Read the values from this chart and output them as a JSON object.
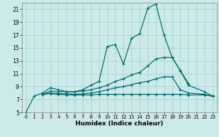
{
  "xlabel": "Humidex (Indice chaleur)",
  "bg_color": "#cceaea",
  "grid_color": "#aad0d0",
  "line_color": "#006b6b",
  "xlim": [
    -0.5,
    23.5
  ],
  "ylim": [
    5,
    22
  ],
  "yticks": [
    5,
    7,
    9,
    11,
    13,
    15,
    17,
    19,
    21
  ],
  "xticks": [
    0,
    1,
    2,
    3,
    4,
    5,
    6,
    7,
    8,
    9,
    10,
    11,
    12,
    13,
    14,
    15,
    16,
    17,
    18,
    19,
    20,
    21,
    22,
    23
  ],
  "lines": [
    {
      "x": [
        0,
        1,
        2,
        3,
        4,
        5,
        6,
        7,
        8,
        9,
        10,
        11,
        12,
        13,
        14,
        15,
        16,
        17,
        18,
        19,
        20
      ],
      "y": [
        5.0,
        7.5,
        8.0,
        8.8,
        8.5,
        8.2,
        8.2,
        8.5,
        9.2,
        9.8,
        15.2,
        15.5,
        12.5,
        16.5,
        17.2,
        21.2,
        21.8,
        17.0,
        13.5,
        11.5,
        9.5
      ]
    },
    {
      "x": [
        2,
        3,
        4,
        5,
        6,
        7,
        8,
        9,
        10,
        11,
        12,
        13,
        14,
        15,
        16,
        17,
        18,
        19,
        20,
        22,
        23
      ],
      "y": [
        7.8,
        8.3,
        8.2,
        8.2,
        8.2,
        8.3,
        8.5,
        8.8,
        9.2,
        9.8,
        10.2,
        10.8,
        11.2,
        12.2,
        13.3,
        13.5,
        13.5,
        11.5,
        9.2,
        8.2,
        7.5
      ]
    },
    {
      "x": [
        2,
        3,
        4,
        5,
        6,
        7,
        8,
        9,
        10,
        11,
        12,
        13,
        14,
        15,
        16,
        17,
        18,
        19,
        20,
        22,
        23
      ],
      "y": [
        7.8,
        8.0,
        7.9,
        7.9,
        7.8,
        7.9,
        8.0,
        8.2,
        8.5,
        8.8,
        9.0,
        9.3,
        9.6,
        9.8,
        10.2,
        10.5,
        10.5,
        8.5,
        8.0,
        7.8,
        7.5
      ]
    },
    {
      "x": [
        2,
        3,
        4,
        5,
        6,
        7,
        8,
        9,
        10,
        11,
        12,
        13,
        14,
        15,
        16,
        17,
        18,
        19,
        20,
        22,
        23
      ],
      "y": [
        7.8,
        7.9,
        7.8,
        7.7,
        7.7,
        7.7,
        7.7,
        7.8,
        7.8,
        7.8,
        7.8,
        7.8,
        7.8,
        7.8,
        7.8,
        7.8,
        7.8,
        7.8,
        7.7,
        7.7,
        7.5
      ]
    }
  ]
}
